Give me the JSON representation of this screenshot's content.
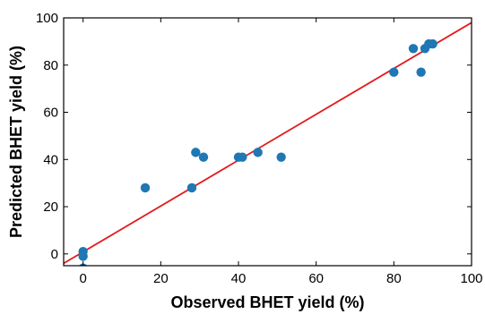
{
  "chart_data": {
    "type": "scatter",
    "xlabel": "Observed BHET yield (%)",
    "ylabel": "Predicted BHET yield (%)",
    "xlim": [
      -5,
      100
    ],
    "ylim": [
      -5,
      100
    ],
    "x_ticks": [
      0,
      20,
      40,
      60,
      80,
      100
    ],
    "y_ticks": [
      0,
      20,
      40,
      60,
      80,
      100
    ],
    "grid": false,
    "legend": "none",
    "series": [
      {
        "color": "#1f77b4",
        "points": [
          {
            "x": 0,
            "y": 1
          },
          {
            "x": 0,
            "y": -1
          },
          {
            "x": 0,
            "y": -6
          },
          {
            "x": 16,
            "y": 28
          },
          {
            "x": 28,
            "y": 28
          },
          {
            "x": 29,
            "y": 43
          },
          {
            "x": 31,
            "y": 41
          },
          {
            "x": 40,
            "y": 41
          },
          {
            "x": 41,
            "y": 41
          },
          {
            "x": 45,
            "y": 43
          },
          {
            "x": 51,
            "y": 41
          },
          {
            "x": 80,
            "y": 77
          },
          {
            "x": 85,
            "y": 87
          },
          {
            "x": 87,
            "y": 77
          },
          {
            "x": 88,
            "y": 87
          },
          {
            "x": 89,
            "y": 89
          },
          {
            "x": 90,
            "y": 89
          }
        ]
      }
    ],
    "fit_line": {
      "color": "#e31a1c",
      "from": {
        "x": -5,
        "y": -4
      },
      "to": {
        "x": 100,
        "y": 98
      }
    },
    "axis_color": "#000000",
    "background": "#ffffff"
  }
}
